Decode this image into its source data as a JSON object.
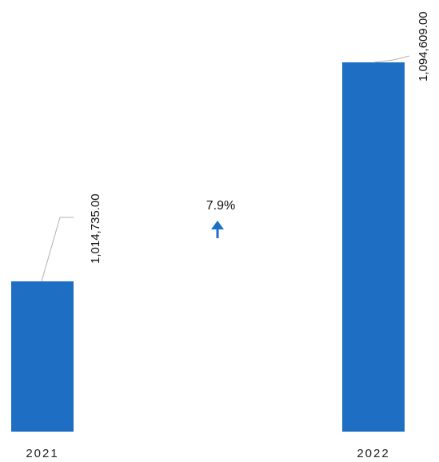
{
  "chart_data": {
    "type": "bar",
    "categories": [
      "2021",
      "2022"
    ],
    "values": [
      1014735.0,
      1094609.0
    ],
    "value_labels": [
      "1,014,735.00",
      "1,094,609.00"
    ],
    "change_label": "7.9%",
    "change_direction": "up",
    "title": "",
    "xlabel": "",
    "ylabel": "",
    "grid": false,
    "legend": "none",
    "colors": {
      "bar": "#1e6fc4",
      "arrow": "#1e6fc4",
      "leader": "#b0b0b0"
    }
  }
}
